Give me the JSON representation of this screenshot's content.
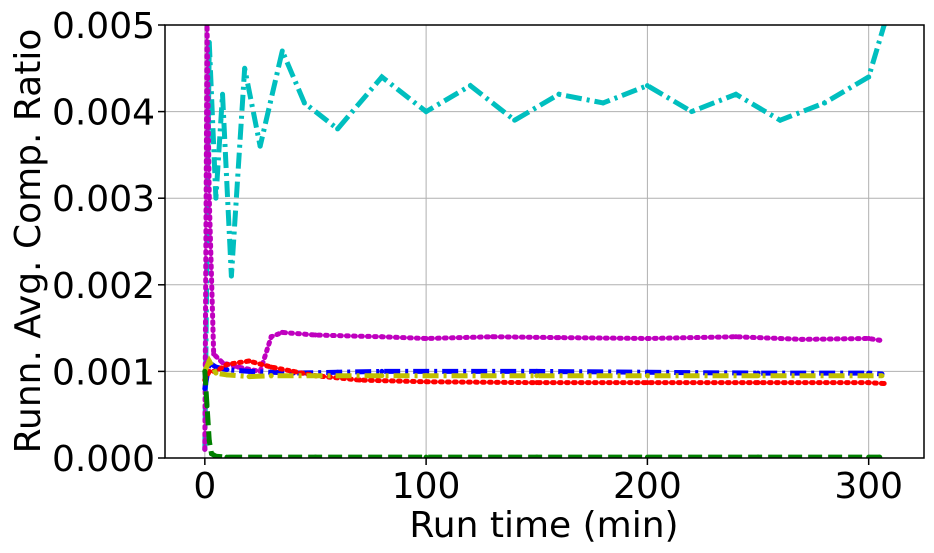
{
  "chart_data": {
    "type": "line",
    "title": "",
    "xlabel": "Run time (min)",
    "ylabel": "Runn. Avg. Comp. Ratio",
    "xlim": [
      -18,
      325
    ],
    "ylim": [
      0.0,
      0.005
    ],
    "x_ticks": [
      0,
      100,
      200,
      300
    ],
    "x_tick_labels": [
      "0",
      "100",
      "200",
      "300"
    ],
    "y_ticks": [
      0.0,
      0.001,
      0.002,
      0.003,
      0.004,
      0.005
    ],
    "y_tick_labels": [
      "0.000",
      "0.001",
      "0.002",
      "0.003",
      "0.004",
      "0.005"
    ],
    "grid": true,
    "legend": "none",
    "series": [
      {
        "color": "#00bfbf",
        "style": "dashdot",
        "x": [
          0,
          2,
          5,
          8,
          12,
          18,
          25,
          35,
          45,
          60,
          80,
          100,
          120,
          140,
          160,
          180,
          200,
          220,
          240,
          260,
          280,
          300,
          307
        ],
        "y": [
          0.0001,
          0.0048,
          0.003,
          0.0042,
          0.0021,
          0.0045,
          0.0036,
          0.0047,
          0.0041,
          0.0038,
          0.0044,
          0.004,
          0.0043,
          0.0039,
          0.0042,
          0.0041,
          0.0043,
          0.004,
          0.0042,
          0.0039,
          0.0041,
          0.0044,
          0.005
        ]
      },
      {
        "color": "#bf00bf",
        "style": "dotted",
        "x": [
          0,
          1,
          2,
          4,
          8,
          15,
          25,
          30,
          35,
          50,
          80,
          100,
          130,
          160,
          200,
          240,
          270,
          300,
          305
        ],
        "y": [
          0.0001,
          0.005,
          0.003,
          0.0012,
          0.0011,
          0.00105,
          0.001,
          0.0014,
          0.00145,
          0.00142,
          0.0014,
          0.00138,
          0.0014,
          0.00139,
          0.00138,
          0.0014,
          0.00137,
          0.00138,
          0.00136
        ]
      },
      {
        "color": "#0000ff",
        "style": "dashdot",
        "x": [
          0,
          2,
          5,
          10,
          20,
          40,
          60,
          80,
          100,
          150,
          200,
          250,
          300,
          306
        ],
        "y": [
          0.0008,
          0.0011,
          0.00105,
          0.00102,
          0.001,
          0.00098,
          0.00099,
          0.001,
          0.001,
          0.001,
          0.00099,
          0.00098,
          0.00098,
          0.00097
        ]
      },
      {
        "color": "#ff0000",
        "style": "dotted",
        "x": [
          0,
          2,
          5,
          10,
          20,
          30,
          40,
          50,
          70,
          100,
          150,
          200,
          250,
          300,
          307
        ],
        "y": [
          0.0009,
          0.001,
          0.001,
          0.00108,
          0.00112,
          0.00105,
          0.001,
          0.00095,
          0.0009,
          0.00088,
          0.00087,
          0.00087,
          0.00087,
          0.00087,
          0.00086
        ]
      },
      {
        "color": "#bfbf00",
        "style": "dashdot",
        "x": [
          0,
          2,
          5,
          10,
          20,
          30,
          50,
          80,
          100,
          150,
          200,
          250,
          300,
          306
        ],
        "y": [
          0.001,
          0.00112,
          0.00098,
          0.00096,
          0.00094,
          0.00095,
          0.00095,
          0.00095,
          0.00095,
          0.00095,
          0.00095,
          0.00095,
          0.00095,
          0.00095
        ]
      },
      {
        "color": "#008000",
        "style": "dashed",
        "x": [
          0,
          1,
          2,
          3,
          5,
          10,
          50,
          100,
          150,
          200,
          250,
          300,
          305
        ],
        "y": [
          0.001,
          0.0006,
          0.0002,
          5e-05,
          2e-05,
          1e-05,
          1e-05,
          1e-05,
          1e-05,
          1e-05,
          1e-05,
          1e-05,
          1e-05
        ]
      }
    ]
  }
}
